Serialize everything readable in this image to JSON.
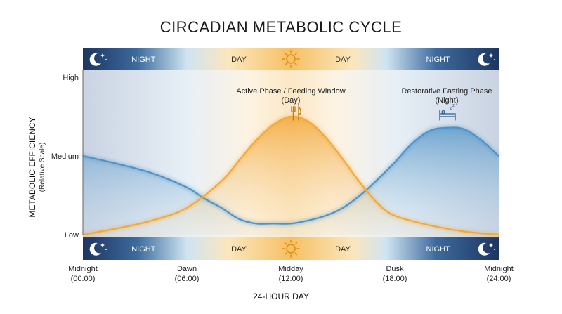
{
  "chart_data": {
    "type": "line",
    "title": "CIRCADIAN METABOLIC CYCLE",
    "xlabel": "24-HOUR DAY",
    "ylabel": "METABOLIC EFFICIENCY",
    "ylabel_sub": "(Relative Scale)",
    "x_ticks": [
      {
        "x": 0,
        "line1": "Midnight",
        "line2": "(00:00)"
      },
      {
        "x": 6,
        "line1": "Dawn",
        "line2": "(06:00)"
      },
      {
        "x": 12,
        "line1": "Midday",
        "line2": "(12:00)"
      },
      {
        "x": 18,
        "line1": "Dusk",
        "line2": "(18:00)"
      },
      {
        "x": 24,
        "line1": "Midnight",
        "line2": "(24:00)"
      }
    ],
    "y_ticks": [
      {
        "y": 0,
        "label": "Low"
      },
      {
        "y": 0.5,
        "label": "Medium"
      },
      {
        "y": 1,
        "label": "High"
      }
    ],
    "xlim": [
      0,
      24
    ],
    "ylim": [
      0,
      1
    ],
    "grid": false,
    "series": [
      {
        "color": "#f2a93b",
        "x": [
          0,
          2,
          4,
          6,
          8,
          9,
          10,
          11,
          12,
          13,
          14,
          15,
          16,
          17,
          18,
          20,
          22,
          24
        ],
        "y": [
          0.0,
          0.04,
          0.09,
          0.17,
          0.34,
          0.47,
          0.6,
          0.7,
          0.75,
          0.72,
          0.62,
          0.48,
          0.33,
          0.2,
          0.12,
          0.06,
          0.02,
          0.0
        ]
      },
      {
        "color": "#4f93c6",
        "x": [
          0,
          2,
          4,
          6,
          7,
          8,
          9,
          10,
          11,
          12,
          13,
          14,
          15,
          16,
          17,
          18,
          19,
          20,
          21,
          22,
          23,
          24
        ],
        "y": [
          0.5,
          0.45,
          0.39,
          0.3,
          0.23,
          0.17,
          0.1,
          0.07,
          0.07,
          0.07,
          0.09,
          0.12,
          0.17,
          0.25,
          0.35,
          0.46,
          0.58,
          0.66,
          0.68,
          0.67,
          0.6,
          0.5
        ]
      }
    ],
    "annotations": [
      {
        "x": 12,
        "line1": "Active Phase / Feeding Window",
        "line2": "(Day)",
        "icon": "fork-knife-icon"
      },
      {
        "x": 21,
        "line1": "Restorative Fasting Phase",
        "line2": "(Night)",
        "icon": "sleeping-bed-icon"
      }
    ],
    "bands": {
      "labels": [
        {
          "x": 3.5,
          "text": "NIGHT"
        },
        {
          "x": 9,
          "text": "DAY"
        },
        {
          "x": 15,
          "text": "DAY"
        },
        {
          "x": 20.5,
          "text": "NIGHT"
        }
      ],
      "icons": [
        "moon-stars-icon",
        "sun-icon",
        "moon-stars-icon"
      ]
    },
    "colors": {
      "night": "#1f3b66",
      "day": "#f4b550",
      "dawn": "#d9e9f3",
      "orange_curve": "#f2a93b",
      "blue_curve": "#4f93c6"
    }
  }
}
